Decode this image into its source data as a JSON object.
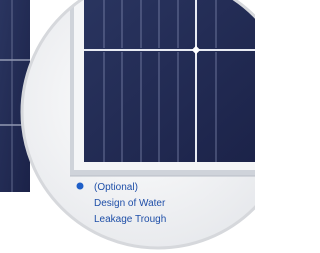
{
  "caption": {
    "lines": [
      "(Optional)",
      "Design of Water",
      "Leakage Trough"
    ]
  }
}
